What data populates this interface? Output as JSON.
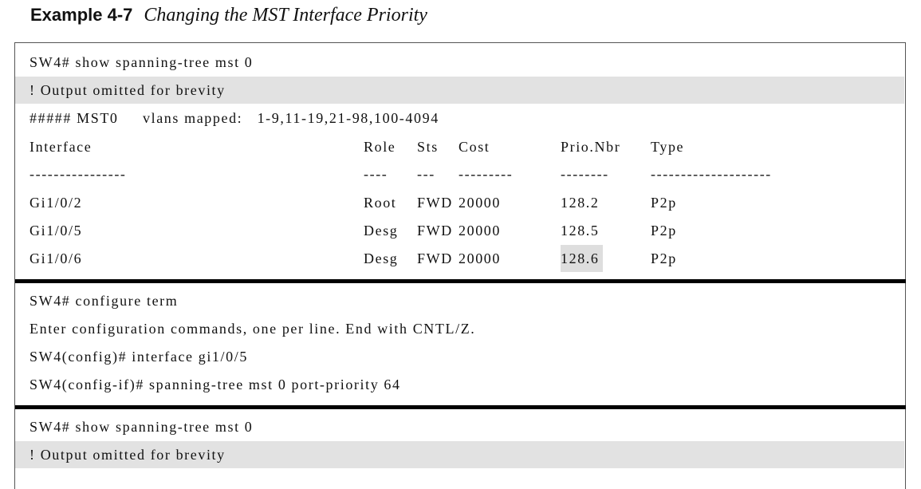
{
  "caption": {
    "label": "Example 4-7",
    "title": "Changing the MST Interface Priority"
  },
  "block1": {
    "command": "SW4# show spanning-tree mst 0",
    "omitted": "! Output omitted for brevity",
    "mst_line": "##### MST0     vlans mapped:   1-9,11-19,21-98,100-4094",
    "headers": [
      "Interface",
      "Role",
      "Sts",
      "Cost",
      "Prio.Nbr",
      "Type"
    ],
    "dividers": [
      "----------------",
      "----",
      "---",
      "---------",
      "--------",
      "--------------------"
    ],
    "rows": [
      {
        "iface": "Gi1/0/2",
        "role": "Root",
        "sts": "FWD",
        "cost": "20000",
        "prio": "128.2",
        "type": "P2p"
      },
      {
        "iface": "Gi1/0/5",
        "role": "Desg",
        "sts": "FWD",
        "cost": "20000",
        "prio": "128.5",
        "type": "P2p"
      },
      {
        "iface": "Gi1/0/6",
        "role": "Desg",
        "sts": "FWD",
        "cost": "20000",
        "prio": "128.6",
        "type": "P2p"
      }
    ]
  },
  "block2": {
    "line1": "SW4# configure term",
    "line2": "Enter configuration commands, one per line. End with CNTL/Z.",
    "line3": "SW4(config)# interface gi1/0/5",
    "line4": "SW4(config-if)# spanning-tree mst 0 port-priority 64"
  },
  "block3": {
    "command": "SW4# show spanning-tree mst 0",
    "omitted": "! Output omitted for brevity"
  }
}
